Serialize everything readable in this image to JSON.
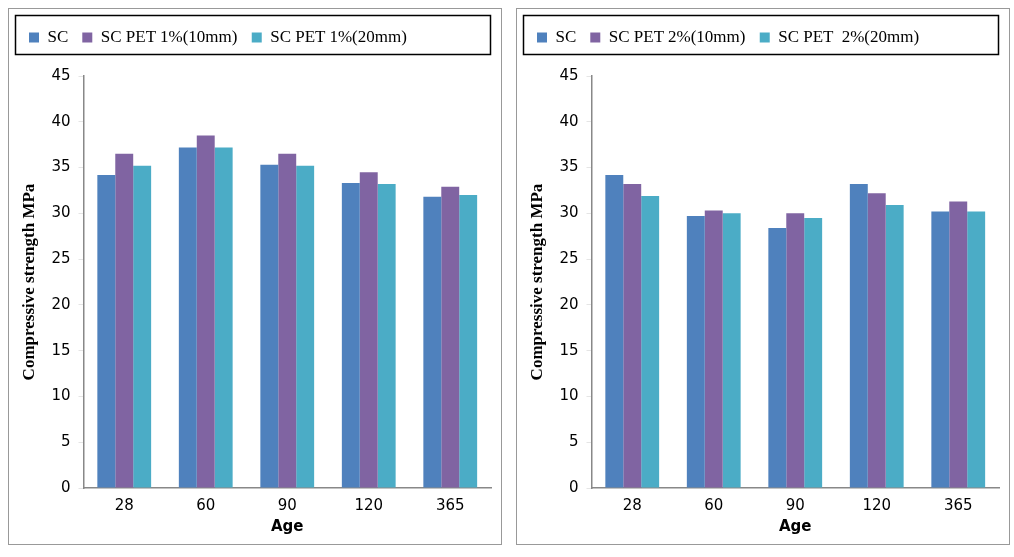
{
  "chart_data": [
    {
      "type": "bar",
      "xlabel": "Age",
      "ylabel": "Compressive strength MPa",
      "categories": [
        "28",
        "60",
        "90",
        "120",
        "365"
      ],
      "ylim": [
        0,
        45
      ],
      "yticks": [
        0,
        5,
        10,
        15,
        20,
        25,
        30,
        35,
        40,
        45
      ],
      "grid": false,
      "legend": "top",
      "series": [
        {
          "name": "SC",
          "color": "#4f81bd",
          "values": [
            34.2,
            37.2,
            35.3,
            33.3,
            31.8
          ]
        },
        {
          "name": "SC PET 1%(10mm)",
          "color": "#8064a2",
          "values": [
            36.5,
            38.5,
            36.5,
            34.5,
            32.9
          ]
        },
        {
          "name": "SC PET 1%(20mm)",
          "color": "#4bacc6",
          "values": [
            35.2,
            37.2,
            35.2,
            33.2,
            32.0
          ]
        }
      ]
    },
    {
      "type": "bar",
      "xlabel": "Age",
      "ylabel": "Compressive strength MPa",
      "categories": [
        "28",
        "60",
        "90",
        "120",
        "365"
      ],
      "ylim": [
        0,
        45
      ],
      "yticks": [
        0,
        5,
        10,
        15,
        20,
        25,
        30,
        35,
        40,
        45
      ],
      "grid": false,
      "legend": "top",
      "series": [
        {
          "name": "SC",
          "color": "#4f81bd",
          "values": [
            34.2,
            29.7,
            28.4,
            33.2,
            30.2
          ]
        },
        {
          "name": "SC PET 2%(10mm)",
          "color": "#8064a2",
          "values": [
            33.2,
            30.3,
            30.0,
            32.2,
            31.3
          ]
        },
        {
          "name": "SC PET  2%(20mm)",
          "color": "#4bacc6",
          "values": [
            31.9,
            30.0,
            29.5,
            30.9,
            30.2
          ]
        }
      ]
    }
  ]
}
